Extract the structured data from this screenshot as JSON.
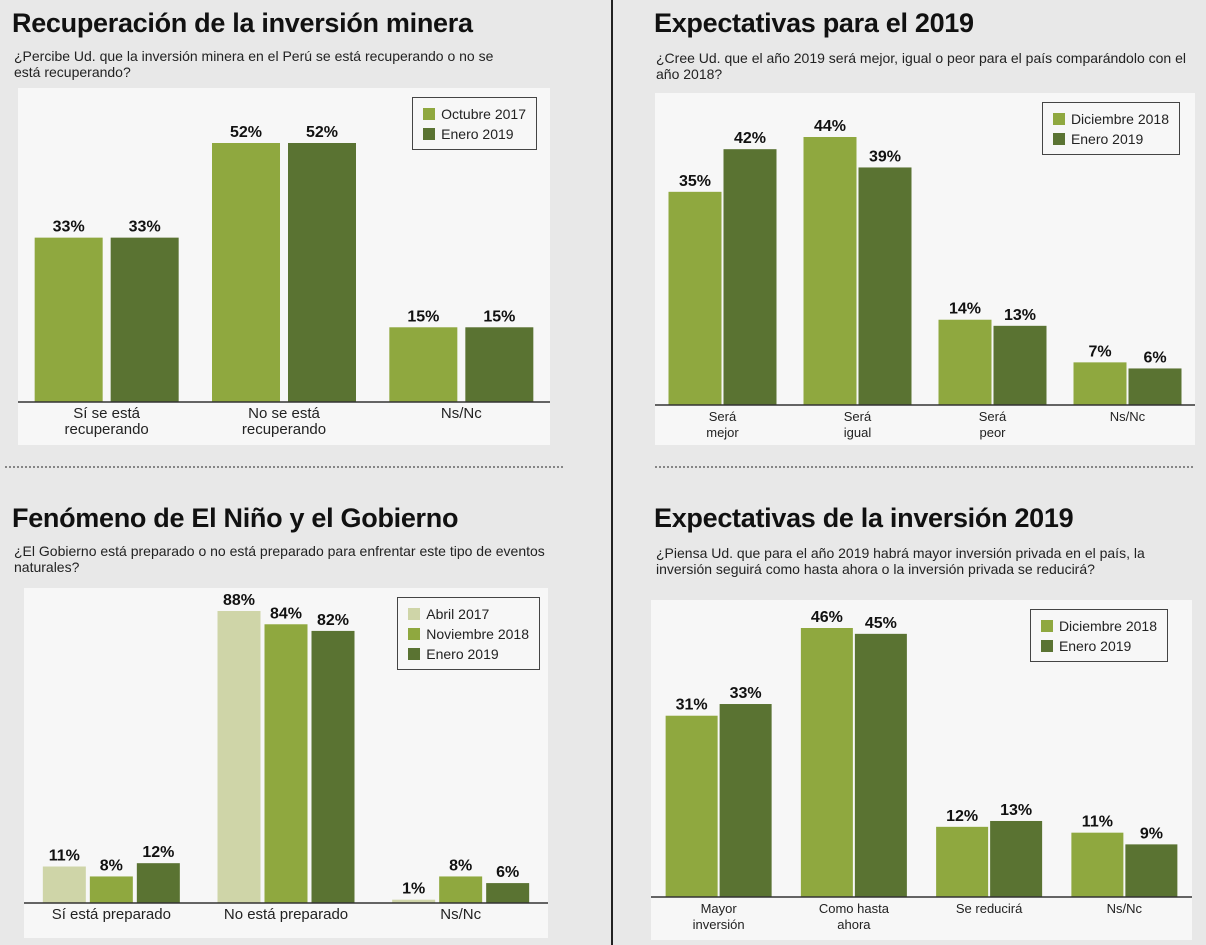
{
  "chart_data": [
    {
      "type": "bar",
      "title": "Recuperación de la inversión minera",
      "subtitle": "¿Percibe Ud. que la inversión minera en el Perú se está recuperando o no se está recuperando?",
      "categories": [
        "Sí se está recuperando",
        "No se está recuperando",
        "Ns/Nc"
      ],
      "series": [
        {
          "name": "Octubre 2017",
          "color": "#8fa83f",
          "values": [
            33,
            52,
            15
          ],
          "value_labels": [
            "33%",
            "52%",
            "15%"
          ]
        },
        {
          "name": "Enero 2019",
          "color": "#5a7332",
          "values": [
            33,
            52,
            15
          ],
          "value_labels": [
            "33%",
            "52%",
            "15%"
          ]
        }
      ],
      "legend": "upper right"
    },
    {
      "type": "bar",
      "title": "Expectativas para el 2019",
      "subtitle": "¿Cree Ud. que el año 2019 será mejor, igual o peor para el país comparándolo con el año 2018?",
      "categories": [
        "Será mejor",
        "Será igual",
        "Será peor",
        "Ns/Nc"
      ],
      "series": [
        {
          "name": "Diciembre 2018",
          "color": "#8fa83f",
          "values": [
            35,
            44,
            14,
            7
          ],
          "value_labels": [
            "35%",
            "44%",
            "14%",
            "7%"
          ]
        },
        {
          "name": "Enero 2019",
          "color": "#5a7332",
          "values": [
            42,
            39,
            13,
            6
          ],
          "value_labels": [
            "42%",
            "39%",
            "13%",
            "6%"
          ]
        }
      ],
      "legend": "upper right"
    },
    {
      "type": "bar",
      "title": "Fenómeno de El Niño y el Gobierno",
      "subtitle": "¿El Gobierno está preparado o no está preparado para enfrentar este tipo de eventos naturales?",
      "categories": [
        "Sí está preparado",
        "No está preparado",
        "Ns/Nc"
      ],
      "series": [
        {
          "name": "Abril 2017",
          "color": "#cfd5a8",
          "values": [
            11,
            88,
            1
          ],
          "value_labels": [
            "11%",
            "88%",
            "1%"
          ]
        },
        {
          "name": "Noviembre 2018",
          "color": "#8fa83f",
          "values": [
            8,
            84,
            8
          ],
          "value_labels": [
            "8%",
            "84%",
            "8%"
          ]
        },
        {
          "name": "Enero 2019",
          "color": "#5a7332",
          "values": [
            12,
            82,
            6
          ],
          "value_labels": [
            "12%",
            "82%",
            "6%"
          ]
        }
      ],
      "legend": "upper right"
    },
    {
      "type": "bar",
      "title": "Expectativas de la inversión 2019",
      "subtitle": "¿Piensa Ud. que para el año 2019 habrá mayor inversión privada en el país, la inversión seguirá como hasta ahora o la inversión privada se reducirá?",
      "categories": [
        "Mayor inversión",
        "Como hasta ahora",
        "Se reducirá",
        "Ns/Nc"
      ],
      "series": [
        {
          "name": "Diciembre 2018",
          "color": "#8fa83f",
          "values": [
            31,
            46,
            12,
            11
          ],
          "value_labels": [
            "31%",
            "46%",
            "12%",
            "11%"
          ]
        },
        {
          "name": "Enero 2019",
          "color": "#5a7332",
          "values": [
            33,
            45,
            13,
            9
          ],
          "value_labels": [
            "33%",
            "45%",
            "13%",
            "9%"
          ]
        }
      ],
      "legend": "upper right"
    }
  ]
}
